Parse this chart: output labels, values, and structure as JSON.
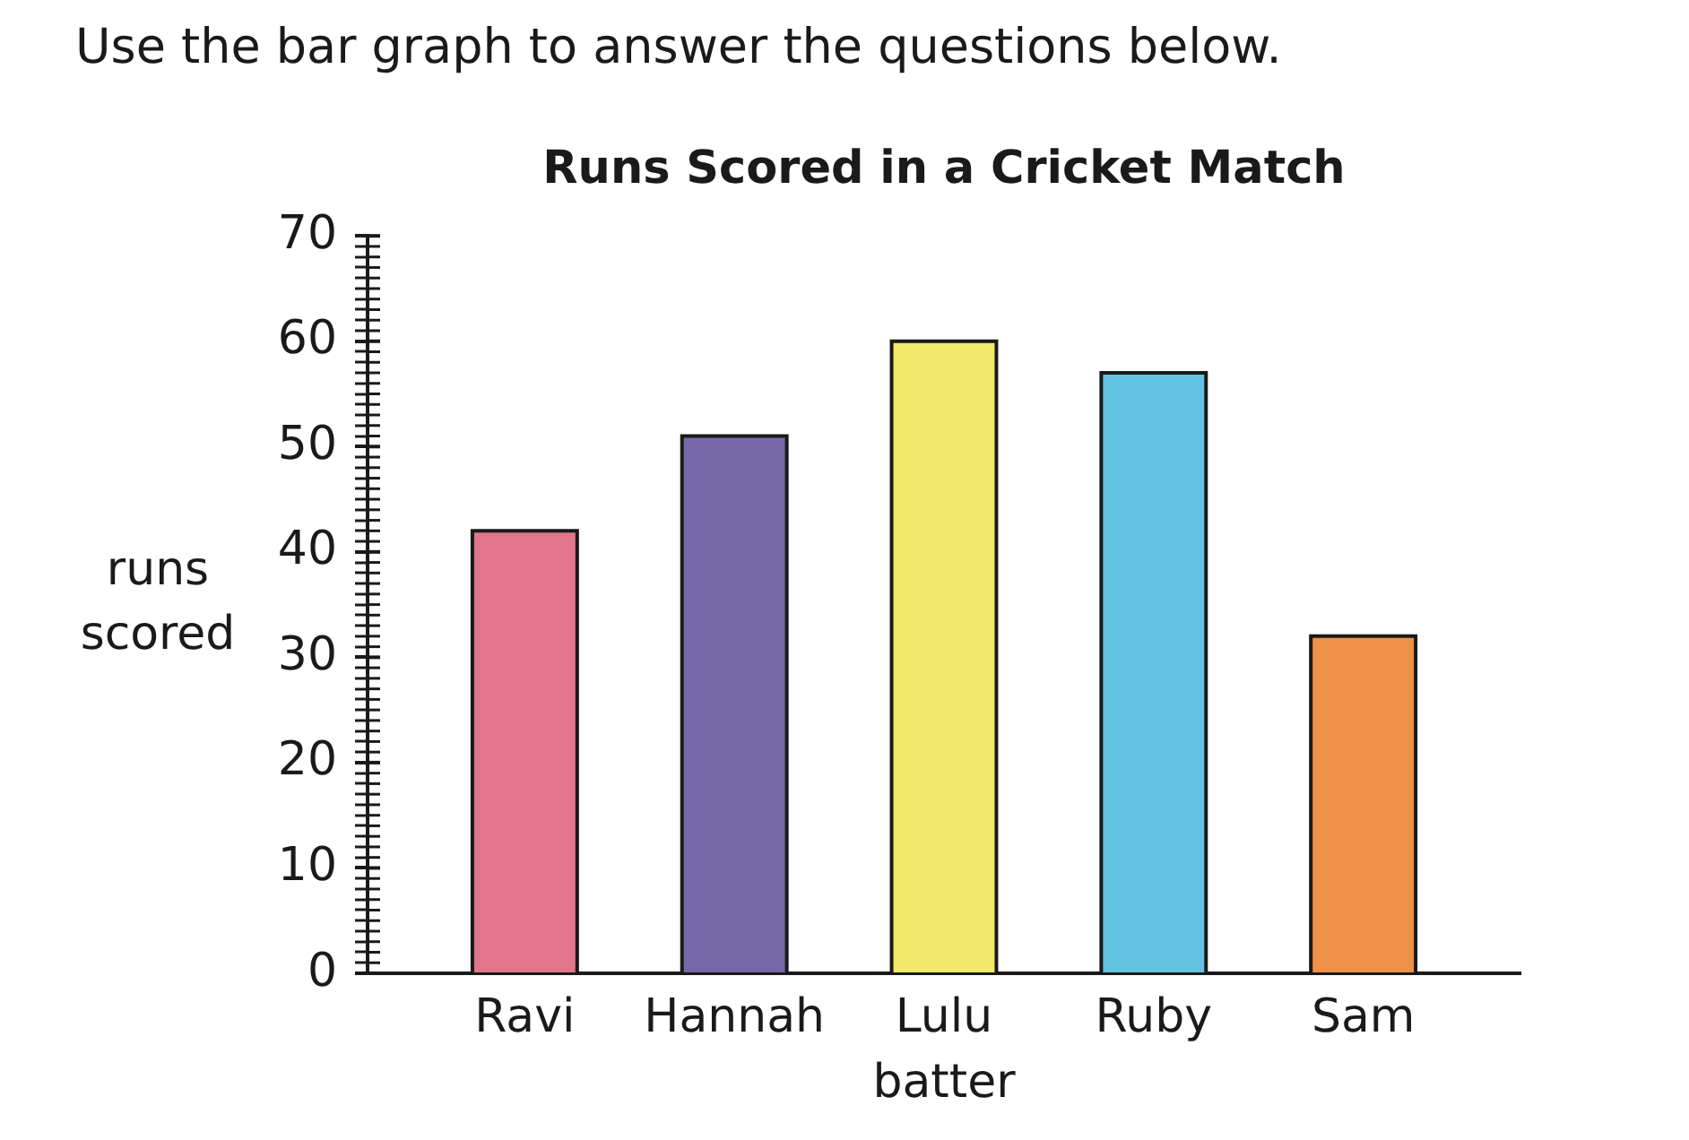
{
  "chart_data": {
    "type": "bar",
    "title": "Runs Scored in a Cricket Match",
    "xlabel": "batter",
    "ylabel": "runs scored",
    "annotations": [
      "Use the bar graph to answer the questions below."
    ],
    "categories": [
      "Ravi",
      "Hannah",
      "Lulu",
      "Ruby",
      "Sam"
    ],
    "values": [
      42,
      51,
      60,
      57,
      32
    ],
    "colors": [
      "#e0758b",
      "#7668a8",
      "#f2e86b",
      "#64c2e2",
      "#ec9145"
    ],
    "ylim": [
      0,
      70
    ],
    "yticks": [
      0,
      {
        "value": 1,
        "label": null
      },
      {
        "value": 2,
        "label": null
      },
      {
        "value": 3,
        "label": null
      },
      {
        "value": 4,
        "label": null
      },
      {
        "value": 5,
        "label": null
      },
      {
        "value": 6,
        "label": null
      },
      {
        "value": 7,
        "label": null
      },
      {
        "value": 8,
        "label": null
      },
      {
        "value": 9,
        "label": null
      },
      10,
      {
        "value": 11,
        "label": null
      },
      {
        "value": 12,
        "label": null
      },
      {
        "value": 13,
        "label": null
      },
      {
        "value": 14,
        "label": null
      },
      {
        "value": 15,
        "label": null
      },
      {
        "value": 16,
        "label": null
      },
      {
        "value": 17,
        "label": null
      },
      {
        "value": 18,
        "label": null
      },
      {
        "value": 19,
        "label": null
      },
      20,
      {
        "value": 21,
        "label": null
      },
      {
        "value": 22,
        "label": null
      },
      {
        "value": 23,
        "label": null
      },
      {
        "value": 24,
        "label": null
      },
      {
        "value": 25,
        "label": null
      },
      {
        "value": 26,
        "label": null
      },
      {
        "value": 27,
        "label": null
      },
      {
        "value": 28,
        "label": null
      },
      {
        "value": 29,
        "label": null
      },
      30,
      {
        "value": 31,
        "label": null
      },
      {
        "value": 32,
        "label": null
      },
      {
        "value": 33,
        "label": null
      },
      {
        "value": 34,
        "label": null
      },
      {
        "value": 35,
        "label": null
      },
      {
        "value": 36,
        "label": null
      },
      {
        "value": 37,
        "label": null
      },
      {
        "value": 38,
        "label": null
      },
      {
        "value": 39,
        "label": null
      },
      40,
      {
        "value": 41,
        "label": null
      },
      {
        "value": 42,
        "label": null
      },
      {
        "value": 43,
        "label": null
      },
      {
        "value": 44,
        "label": null
      },
      {
        "value": 45,
        "label": null
      },
      {
        "value": 46,
        "label": null
      },
      {
        "value": 47,
        "label": null
      },
      {
        "value": 48,
        "label": null
      },
      {
        "value": 49,
        "label": null
      },
      50,
      {
        "value": 51,
        "label": null
      },
      {
        "value": 52,
        "label": null
      },
      {
        "value": 53,
        "label": null
      },
      {
        "value": 54,
        "label": null
      },
      {
        "value": 55,
        "label": null
      },
      {
        "value": 56,
        "label": null
      },
      {
        "value": 57,
        "label": null
      },
      {
        "value": 58,
        "label": null
      },
      {
        "value": 59,
        "label": null
      },
      60,
      {
        "value": 61,
        "label": null
      },
      {
        "value": 62,
        "label": null
      },
      {
        "value": 63,
        "label": null
      },
      {
        "value": 64,
        "label": null
      },
      {
        "value": 65,
        "label": null
      },
      {
        "value": 66,
        "label": null
      },
      {
        "value": 67,
        "label": null
      },
      {
        "value": 68,
        "label": null
      },
      {
        "value": 69,
        "label": null
      },
      70
    ]
  }
}
